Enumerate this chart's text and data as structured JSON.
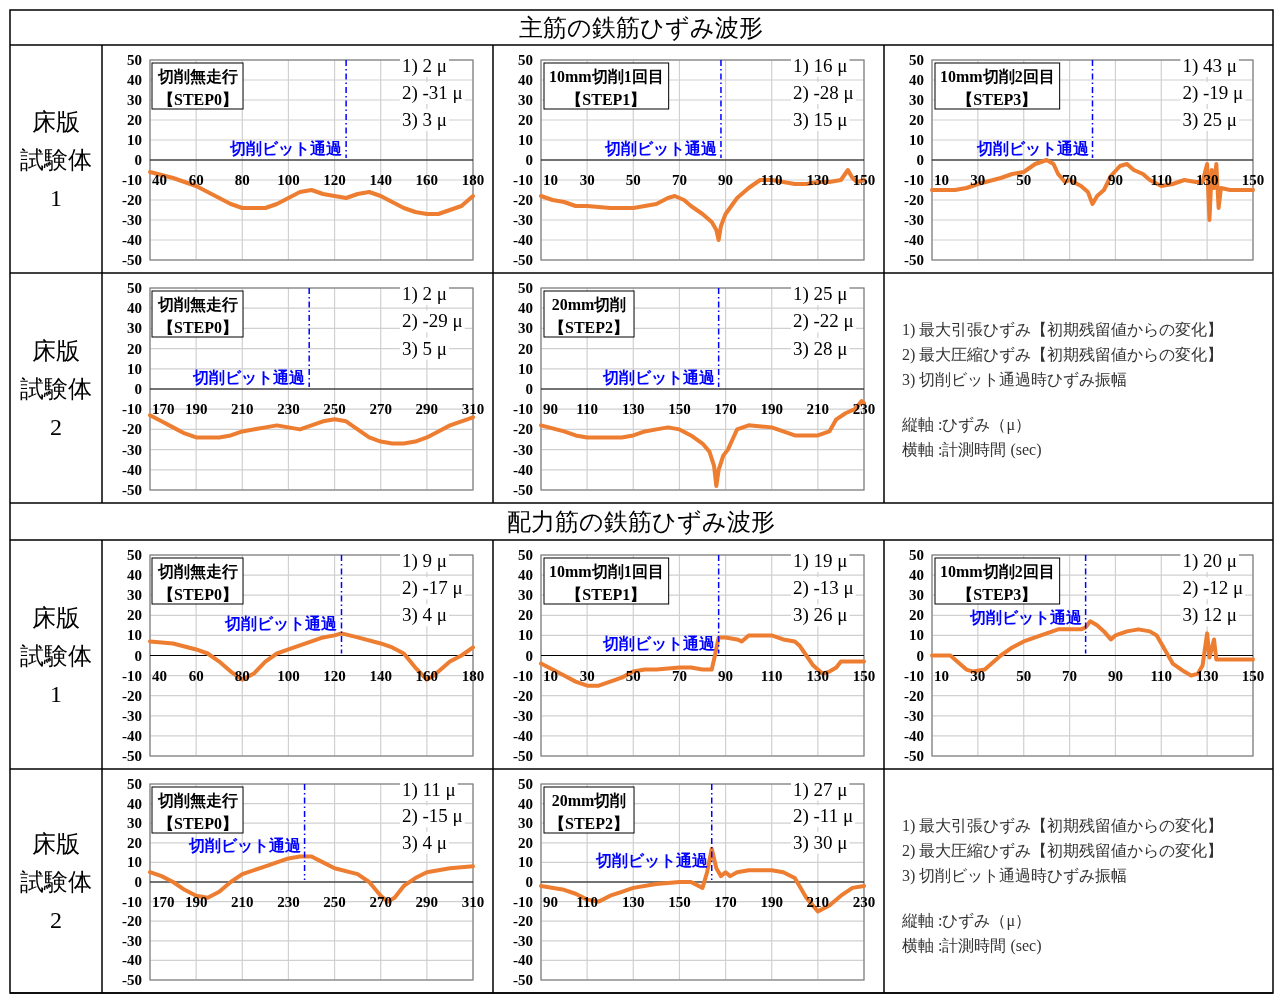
{
  "chart_data": [
    {
      "type": "other",
      "title": "主筋の鉄筋ひずみ波形"
    },
    {
      "type": "other",
      "annotations": [
        "床版",
        "試験体",
        "1"
      ]
    },
    {
      "type": "line",
      "xlim": [
        40,
        180
      ],
      "xticks": [
        40,
        60,
        80,
        100,
        120,
        140,
        160,
        180
      ],
      "ylim": [
        -50,
        50
      ],
      "yticks": [
        -50,
        -40,
        -30,
        -20,
        -10,
        0,
        10,
        20,
        30,
        40,
        50
      ],
      "grid": true,
      "ref_lines": [
        {
          "axis": "x",
          "value": 125,
          "label": "切削ビット通過",
          "color": "#0000ff",
          "line_style": "dashed"
        }
      ],
      "annotations": [
        "切削無走行【STEP0】",
        "1) 2 μ",
        "2) -31 μ",
        "3) 3 μ"
      ],
      "series": [
        {
          "color": "#ed7d31",
          "x": [
            40,
            50,
            60,
            70,
            75,
            80,
            90,
            95,
            100,
            105,
            110,
            115,
            120,
            125,
            130,
            135,
            140,
            145,
            150,
            155,
            160,
            165,
            170,
            175,
            180
          ],
          "values": [
            -6,
            -9,
            -13,
            -19,
            -22,
            -24,
            -24,
            -22,
            -19,
            -16,
            -15,
            -17,
            -18,
            -19,
            -17,
            -16,
            -18,
            -21,
            -24,
            -26,
            -27,
            -27,
            -25,
            -23,
            -18
          ]
        }
      ]
    },
    {
      "type": "line",
      "xlim": [
        10,
        150
      ],
      "xticks": [
        10,
        30,
        50,
        70,
        90,
        110,
        130,
        150
      ],
      "ylim": [
        -50,
        50
      ],
      "yticks": [
        -50,
        -40,
        -30,
        -20,
        -10,
        0,
        10,
        20,
        30,
        40,
        50
      ],
      "grid": true,
      "ref_lines": [
        {
          "axis": "x",
          "value": 88,
          "label": "切削ビット通過",
          "color": "#0000ff",
          "line_style": "dashed"
        }
      ],
      "annotations": [
        "10mm切削1回目【STEP1】",
        "1) 16 μ",
        "2) -28 μ",
        "3) 15 μ"
      ],
      "series": [
        {
          "color": "#ed7d31",
          "x": [
            10,
            15,
            20,
            25,
            30,
            40,
            50,
            55,
            60,
            65,
            68,
            72,
            75,
            80,
            84,
            86,
            87,
            88,
            90,
            95,
            100,
            105,
            110,
            120,
            125,
            130,
            135,
            140,
            143,
            145,
            147,
            150
          ],
          "values": [
            -18,
            -20,
            -21,
            -23,
            -23,
            -24,
            -24,
            -23,
            -22,
            -19,
            -18,
            -20,
            -23,
            -27,
            -31,
            -35,
            -40,
            -33,
            -27,
            -19,
            -14,
            -10,
            -10,
            -12,
            -12,
            -11,
            -11,
            -10,
            -5,
            -9,
            -11,
            -10
          ]
        }
      ]
    },
    {
      "type": "line",
      "xlim": [
        10,
        150
      ],
      "xticks": [
        10,
        30,
        50,
        70,
        90,
        110,
        130,
        150
      ],
      "ylim": [
        -50,
        50
      ],
      "yticks": [
        -50,
        -40,
        -30,
        -20,
        -10,
        0,
        10,
        20,
        30,
        40,
        50
      ],
      "grid": true,
      "ref_lines": [
        {
          "axis": "x",
          "value": 80,
          "label": "切削ビット通過",
          "color": "#0000ff",
          "line_style": "dashed"
        }
      ],
      "annotations": [
        "10mm切削2回目【STEP3】",
        "1) 43 μ",
        "2) -19 μ",
        "3) 25 μ"
      ],
      "series": [
        {
          "color": "#ed7d31",
          "x": [
            10,
            20,
            25,
            30,
            40,
            45,
            50,
            55,
            60,
            63,
            65,
            68,
            70,
            75,
            78,
            80,
            82,
            85,
            88,
            92,
            95,
            98,
            102,
            105,
            110,
            115,
            120,
            125,
            128,
            130,
            131,
            132,
            133,
            134,
            135,
            136,
            140,
            150
          ],
          "values": [
            -15,
            -15,
            -14,
            -12,
            -9,
            -7,
            -6,
            -2,
            0,
            -2,
            -7,
            -11,
            -10,
            -13,
            -16,
            -22,
            -18,
            -15,
            -8,
            -3,
            -2,
            -5,
            -7,
            -10,
            -13,
            -12,
            -10,
            -11,
            -11,
            -2,
            -30,
            -5,
            -14,
            -2,
            -24,
            -14,
            -15,
            -15
          ]
        }
      ]
    },
    {
      "type": "other",
      "annotations": [
        "床版",
        "試験体",
        "2"
      ]
    },
    {
      "type": "line",
      "xlim": [
        170,
        310
      ],
      "xticks": [
        170,
        190,
        210,
        230,
        250,
        270,
        290,
        310
      ],
      "ylim": [
        -50,
        50
      ],
      "yticks": [
        -50,
        -40,
        -30,
        -20,
        -10,
        0,
        10,
        20,
        30,
        40,
        50
      ],
      "grid": true,
      "ref_lines": [
        {
          "axis": "x",
          "value": 239,
          "label": "切削ビット通過",
          "color": "#0000ff",
          "line_style": "dashed"
        }
      ],
      "annotations": [
        "切削無走行【STEP0】",
        "1) 2 μ",
        "2) -29 μ",
        "3) 5 μ"
      ],
      "series": [
        {
          "color": "#ed7d31",
          "x": [
            170,
            175,
            180,
            185,
            190,
            195,
            200,
            205,
            210,
            220,
            225,
            230,
            235,
            240,
            245,
            250,
            255,
            260,
            265,
            270,
            275,
            280,
            285,
            290,
            295,
            300,
            305,
            310
          ],
          "values": [
            -13,
            -16,
            -19,
            -22,
            -24,
            -24,
            -24,
            -23,
            -21,
            -19,
            -18,
            -19,
            -20,
            -18,
            -16,
            -15,
            -16,
            -20,
            -24,
            -26,
            -27,
            -27,
            -26,
            -24,
            -21,
            -18,
            -16,
            -14
          ]
        }
      ]
    },
    {
      "type": "line",
      "xlim": [
        90,
        230
      ],
      "xticks": [
        90,
        110,
        130,
        150,
        170,
        190,
        210,
        230
      ],
      "ylim": [
        -50,
        50
      ],
      "yticks": [
        -50,
        -40,
        -30,
        -20,
        -10,
        0,
        10,
        20,
        30,
        40,
        50
      ],
      "grid": true,
      "ref_lines": [
        {
          "axis": "x",
          "value": 167,
          "label": "切削ビット通過",
          "color": "#0000ff",
          "line_style": "dashed"
        }
      ],
      "annotations": [
        "20mm切削【STEP2】",
        "1) 25 μ",
        "2) -22 μ",
        "3) 28 μ"
      ],
      "series": [
        {
          "color": "#ed7d31",
          "x": [
            90,
            100,
            105,
            110,
            120,
            125,
            130,
            135,
            140,
            145,
            150,
            155,
            160,
            163,
            165,
            166,
            167,
            169,
            171,
            173,
            175,
            180,
            190,
            195,
            200,
            210,
            215,
            218,
            222,
            226,
            229,
            230
          ],
          "values": [
            -18,
            -21,
            -23,
            -24,
            -24,
            -24,
            -23,
            -21,
            -20,
            -19,
            -20,
            -23,
            -27,
            -31,
            -38,
            -48,
            -40,
            -33,
            -30,
            -25,
            -20,
            -18,
            -19,
            -21,
            -23,
            -23,
            -21,
            -15,
            -12,
            -10,
            -6,
            -7
          ]
        }
      ]
    },
    {
      "type": "other",
      "annotations": [
        "1) 最大引張ひずみ【初期残留値からの変化】",
        "2) 最大圧縮ひずみ【初期残留値からの変化】",
        "3) 切削ビット通過時ひずみ振幅",
        "縦軸 :ひずみ（μ）",
        "横軸 :計測時間 (sec)"
      ]
    },
    {
      "type": "other",
      "title": "配力筋の鉄筋ひずみ波形"
    },
    {
      "type": "other",
      "annotations": [
        "床版",
        "試験体",
        "1"
      ]
    },
    {
      "type": "line",
      "xlim": [
        40,
        180
      ],
      "xticks": [
        40,
        60,
        80,
        100,
        120,
        140,
        160,
        180
      ],
      "ylim": [
        -50,
        50
      ],
      "yticks": [
        -50,
        -40,
        -30,
        -20,
        -10,
        0,
        10,
        20,
        30,
        40,
        50
      ],
      "grid": true,
      "ref_lines": [
        {
          "axis": "x",
          "value": 123,
          "label": "切削ビット通過",
          "color": "#0000ff",
          "line_style": "dashed"
        }
      ],
      "annotations": [
        "切削無走行【STEP0】",
        "1) 9 μ",
        "2) -17 μ",
        "3) 4 μ"
      ],
      "series": [
        {
          "color": "#ed7d31",
          "x": [
            40,
            50,
            60,
            65,
            70,
            75,
            80,
            85,
            90,
            95,
            100,
            105,
            110,
            115,
            120,
            123,
            130,
            140,
            145,
            150,
            155,
            160,
            163,
            170,
            175,
            180
          ],
          "values": [
            7,
            6,
            3,
            1,
            -3,
            -8,
            -12,
            -9,
            -3,
            1,
            3,
            5,
            7,
            9,
            10,
            11,
            9,
            6,
            4,
            1,
            -6,
            -12,
            -10,
            -3,
            0,
            4
          ]
        }
      ]
    },
    {
      "type": "line",
      "xlim": [
        10,
        150
      ],
      "xticks": [
        10,
        30,
        50,
        70,
        90,
        110,
        130,
        150
      ],
      "ylim": [
        -50,
        50
      ],
      "yticks": [
        -50,
        -40,
        -30,
        -20,
        -10,
        0,
        10,
        20,
        30,
        40,
        50
      ],
      "grid": true,
      "ref_lines": [
        {
          "axis": "x",
          "value": 87,
          "label": "切削ビット通過",
          "color": "#0000ff",
          "line_style": "dashed"
        }
      ],
      "annotations": [
        "10mm切削1回目【STEP1】",
        "1) 19 μ",
        "2) -13 μ",
        "3) 26 μ"
      ],
      "series": [
        {
          "color": "#ed7d31",
          "x": [
            10,
            15,
            20,
            25,
            30,
            35,
            40,
            45,
            50,
            55,
            60,
            70,
            75,
            80,
            84,
            85,
            87,
            90,
            95,
            97,
            100,
            110,
            115,
            120,
            122,
            125,
            128,
            132,
            135,
            138,
            140,
            145,
            150
          ],
          "values": [
            -4,
            -7,
            -10,
            -13,
            -15,
            -15,
            -13,
            -11,
            -8,
            -7,
            -7,
            -6,
            -6,
            -7,
            -7,
            -2,
            9,
            9,
            8,
            7,
            10,
            10,
            8,
            7,
            5,
            0,
            -5,
            -9,
            -8,
            -6,
            -3,
            -3,
            -3
          ]
        }
      ]
    },
    {
      "type": "line",
      "xlim": [
        10,
        150
      ],
      "xticks": [
        10,
        30,
        50,
        70,
        90,
        110,
        130,
        150
      ],
      "ylim": [
        -50,
        50
      ],
      "yticks": [
        -50,
        -40,
        -30,
        -20,
        -10,
        0,
        10,
        20,
        30,
        40,
        50
      ],
      "grid": true,
      "ref_lines": [
        {
          "axis": "x",
          "value": 77,
          "label": "切削ビット通過",
          "color": "#0000ff",
          "line_style": "dashed"
        }
      ],
      "annotations": [
        "10mm切削2回目【STEP3】",
        "1) 20 μ",
        "2) -12 μ",
        "3) 12 μ"
      ],
      "series": [
        {
          "color": "#ed7d31",
          "x": [
            10,
            18,
            20,
            25,
            28,
            33,
            35,
            40,
            45,
            50,
            55,
            60,
            65,
            70,
            75,
            77,
            79,
            82,
            85,
            88,
            90,
            95,
            100,
            105,
            108,
            110,
            113,
            115,
            120,
            123,
            126,
            128,
            130,
            131,
            133,
            134,
            135,
            150
          ],
          "values": [
            0,
            0,
            -2,
            -7,
            -8,
            -7,
            -5,
            0,
            4,
            7,
            9,
            11,
            13,
            13,
            13,
            14,
            17,
            15,
            12,
            8,
            10,
            12,
            13,
            12,
            10,
            6,
            0,
            -4,
            -8,
            -10,
            -9,
            -5,
            11,
            -1,
            8,
            -2,
            -2,
            -2
          ]
        }
      ]
    },
    {
      "type": "other",
      "annotations": [
        "床版",
        "試験体",
        "2"
      ]
    },
    {
      "type": "line",
      "xlim": [
        170,
        310
      ],
      "xticks": [
        170,
        190,
        210,
        230,
        250,
        270,
        290,
        310
      ],
      "ylim": [
        -50,
        50
      ],
      "yticks": [
        -50,
        -40,
        -30,
        -20,
        -10,
        0,
        10,
        20,
        30,
        40,
        50
      ],
      "grid": true,
      "ref_lines": [
        {
          "axis": "x",
          "value": 237,
          "label": "切削ビット通過",
          "color": "#0000ff",
          "line_style": "dashed"
        }
      ],
      "annotations": [
        "切削無走行【STEP0】",
        "1) 11 μ",
        "2) -15 μ",
        "3) 4 μ"
      ],
      "series": [
        {
          "color": "#ed7d31",
          "x": [
            170,
            175,
            180,
            185,
            190,
            195,
            200,
            205,
            210,
            220,
            230,
            235,
            240,
            245,
            250,
            260,
            265,
            270,
            273,
            276,
            280,
            285,
            290,
            300,
            310
          ],
          "values": [
            5,
            3,
            0,
            -4,
            -7,
            -8,
            -5,
            0,
            4,
            8,
            12,
            13,
            13,
            10,
            7,
            4,
            0,
            -7,
            -10,
            -8,
            -2,
            2,
            5,
            7,
            8
          ]
        }
      ]
    },
    {
      "type": "line",
      "xlim": [
        90,
        230
      ],
      "xticks": [
        90,
        110,
        130,
        150,
        170,
        190,
        210,
        230
      ],
      "ylim": [
        -50,
        50
      ],
      "yticks": [
        -50,
        -40,
        -30,
        -20,
        -10,
        0,
        10,
        20,
        30,
        40,
        50
      ],
      "grid": true,
      "ref_lines": [
        {
          "axis": "x",
          "value": 164,
          "label": "切削ビット通過",
          "color": "#0000ff",
          "line_style": "dashed"
        }
      ],
      "annotations": [
        "20mm切削【STEP2】",
        "1) 27 μ",
        "2) -11 μ",
        "3) 30 μ"
      ],
      "series": [
        {
          "color": "#ed7d31",
          "x": [
            90,
            100,
            105,
            110,
            115,
            120,
            125,
            130,
            140,
            150,
            155,
            160,
            162,
            164,
            166,
            168,
            170,
            172,
            175,
            180,
            190,
            195,
            200,
            205,
            210,
            215,
            220,
            225,
            230
          ],
          "values": [
            -2,
            -4,
            -6,
            -9,
            -10,
            -7,
            -5,
            -3,
            -1,
            0,
            0,
            -3,
            5,
            17,
            7,
            3,
            5,
            3,
            5,
            6,
            6,
            5,
            2,
            -8,
            -15,
            -12,
            -7,
            -3,
            -2
          ]
        }
      ]
    },
    {
      "type": "other",
      "annotations": [
        "1) 最大引張ひずみ【初期残留値からの変化】",
        "2) 最大圧縮ひずみ【初期残留値からの変化】",
        "3) 切削ビット通過時ひずみ振幅",
        "縦軸 :ひずみ（μ）",
        "横軸 :計測時間 (sec)"
      ]
    }
  ]
}
